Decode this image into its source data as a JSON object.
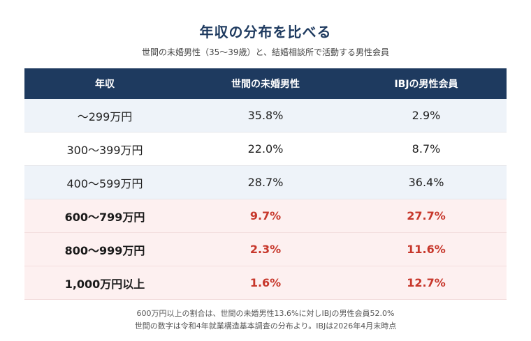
{
  "chart_data": {
    "type": "table",
    "title": "年収の分布を比べる",
    "subtitle": "世間の未婚男性（35〜39歳）と、結婚相談所で活動する男性会員",
    "columns": [
      "年収",
      "世間の未婚男性",
      "IBJの男性会員"
    ],
    "rows": [
      {
        "label": "〜299万円",
        "general": "35.8%",
        "ibj": "2.9%",
        "highlight": false
      },
      {
        "label": "300〜399万円",
        "general": "22.0%",
        "ibj": "8.7%",
        "highlight": false
      },
      {
        "label": "400〜599万円",
        "general": "28.7%",
        "ibj": "36.4%",
        "highlight": false
      },
      {
        "label": "600〜799万円",
        "general": "9.7%",
        "ibj": "27.7%",
        "highlight": true
      },
      {
        "label": "800〜999万円",
        "general": "2.3%",
        "ibj": "11.6%",
        "highlight": true
      },
      {
        "label": "1,000万円以上",
        "general": "1.6%",
        "ibj": "12.7%",
        "highlight": true
      }
    ],
    "notes": [
      "600万円以上の割合は、世間の未婚男性13.6%に対しIBJの男性会員52.0%",
      "世間の数字は令和4年就業構造基本調査の分布より。IBJは2026年4月末時点"
    ],
    "colors": {
      "header_bg": "#1e3a5f",
      "header_text": "#ffffff",
      "alt_row_bg": "#eef3f9",
      "highlight_row_bg": "#fdf0f0",
      "highlight_value": "#c7372b"
    }
  }
}
